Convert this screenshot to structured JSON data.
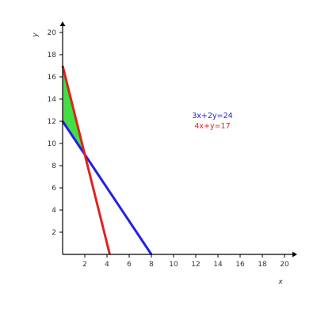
{
  "chart_data": {
    "type": "line",
    "title": "",
    "xlabel": "x",
    "ylabel": "y",
    "xlim": [
      0,
      20
    ],
    "ylim": [
      0,
      20
    ],
    "x_ticks": [
      2,
      4,
      6,
      8,
      10,
      12,
      14,
      16,
      18,
      20
    ],
    "y_ticks": [
      2,
      4,
      6,
      8,
      10,
      12,
      14,
      16,
      18,
      20
    ],
    "grid": false,
    "legend_position": "right",
    "series": [
      {
        "name": "3x+2y=24",
        "color": "#2222dd",
        "points": [
          [
            0,
            12
          ],
          [
            8,
            0
          ]
        ]
      },
      {
        "name": "4x+y=17",
        "color": "#dd2222",
        "points": [
          [
            0,
            17
          ],
          [
            4.25,
            0
          ]
        ]
      }
    ],
    "shaded_region": {
      "color": "#44dd44",
      "vertices": [
        [
          0,
          12
        ],
        [
          0,
          17
        ],
        [
          2,
          9
        ]
      ]
    }
  }
}
